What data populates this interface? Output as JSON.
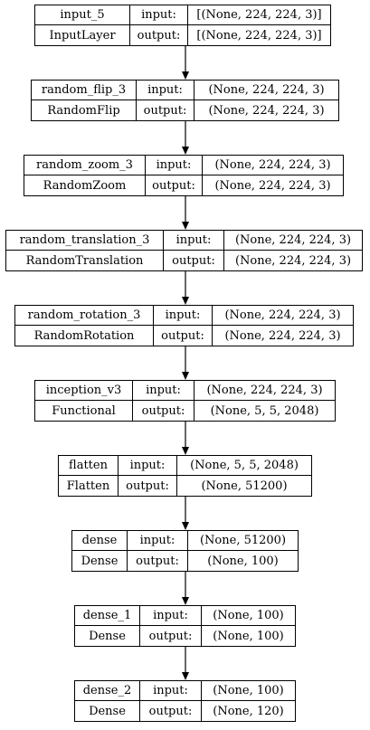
{
  "labels": {
    "input": "input:",
    "output": "output:"
  },
  "nodes": [
    {
      "name": "input_5",
      "type": "InputLayer",
      "input": "[(None, 224, 224, 3)]",
      "output": "[(None, 224, 224, 3)]"
    },
    {
      "name": "random_flip_3",
      "type": "RandomFlip",
      "input": "(None, 224, 224, 3)",
      "output": "(None, 224, 224, 3)"
    },
    {
      "name": "random_zoom_3",
      "type": "RandomZoom",
      "input": "(None, 224, 224, 3)",
      "output": "(None, 224, 224, 3)"
    },
    {
      "name": "random_translation_3",
      "type": "RandomTranslation",
      "input": "(None, 224, 224, 3)",
      "output": "(None, 224, 224, 3)"
    },
    {
      "name": "random_rotation_3",
      "type": "RandomRotation",
      "input": "(None, 224, 224, 3)",
      "output": "(None, 224, 224, 3)"
    },
    {
      "name": "inception_v3",
      "type": "Functional",
      "input": "(None, 224, 224, 3)",
      "output": "(None, 5, 5, 2048)"
    },
    {
      "name": "flatten",
      "type": "Flatten",
      "input": "(None, 5, 5, 2048)",
      "output": "(None, 51200)"
    },
    {
      "name": "dense",
      "type": "Dense",
      "input": "(None, 51200)",
      "output": "(None, 100)"
    },
    {
      "name": "dense_1",
      "type": "Dense",
      "input": "(None, 100)",
      "output": "(None, 100)"
    },
    {
      "name": "dense_2",
      "type": "Dense",
      "input": "(None, 100)",
      "output": "(None, 120)"
    }
  ]
}
